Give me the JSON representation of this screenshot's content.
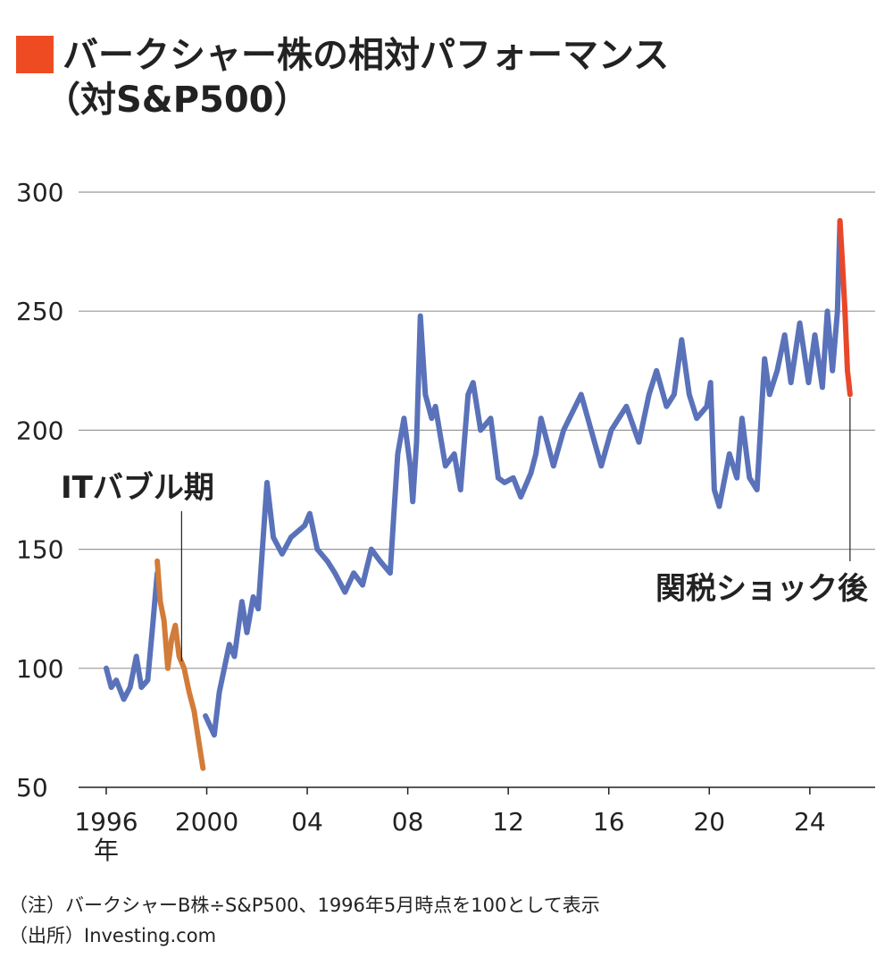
{
  "chart_data": {
    "type": "line",
    "title": "バークシャー株の相対パフォーマンス",
    "subtitle": "（対S&P500）",
    "title_marker_color": "#ef4b23",
    "x_unit": "年",
    "xlim": [
      1994.9,
      2026.6
    ],
    "xticks": [
      1996,
      2000,
      {
        "value": 2004,
        "label": "04"
      },
      {
        "value": 2008,
        "label": "08"
      },
      {
        "value": 2012,
        "label": "12"
      },
      {
        "value": 2016,
        "label": "16"
      },
      {
        "value": 2020,
        "label": "20"
      },
      {
        "value": 2024,
        "label": "24"
      }
    ],
    "ylim": [
      50,
      300
    ],
    "yticks": [
      50,
      100,
      150,
      200,
      250,
      300
    ],
    "grid": true,
    "series": [
      {
        "color": "#5a72b9",
        "x": [
          1996.0,
          1996.2,
          1996.4,
          1996.7,
          1996.95,
          1997.2,
          1997.4,
          1997.65,
          1997.85,
          1998.03
        ],
        "values": [
          100,
          92,
          95,
          87,
          92,
          105,
          92,
          95,
          118,
          140
        ]
      },
      {
        "color": "#d27c3a",
        "x": [
          1998.03,
          1998.15,
          1998.3,
          1998.45,
          1998.6,
          1998.75,
          1998.9,
          1999.1,
          1999.3,
          1999.5,
          1999.7,
          1999.85
        ],
        "values": [
          145,
          128,
          120,
          100,
          112,
          118,
          105,
          100,
          90,
          82,
          68,
          58
        ]
      },
      {
        "color": "#5a72b9",
        "x": [
          1999.95,
          2000.3,
          2000.5,
          2000.9,
          2001.1,
          2001.4,
          2001.6,
          2001.85,
          2002.05,
          2002.4,
          2002.65,
          2003.0,
          2003.35,
          2003.9,
          2004.1,
          2004.4,
          2004.8,
          2005.1,
          2005.5,
          2005.85,
          2006.2,
          2006.55,
          2006.9,
          2007.3,
          2007.45,
          2007.6,
          2007.85,
          2008.1,
          2008.2,
          2008.35,
          2008.5,
          2008.7,
          2008.95,
          2009.1,
          2009.5,
          2009.85,
          2010.1,
          2010.4,
          2010.6,
          2010.9,
          2011.3,
          2011.6,
          2011.85,
          2012.2,
          2012.5,
          2012.9,
          2013.1,
          2013.3,
          2013.8,
          2014.2,
          2014.9,
          2015.3,
          2015.7,
          2016.1,
          2016.7,
          2017.2,
          2017.6,
          2017.9,
          2018.3,
          2018.6,
          2018.9,
          2019.2,
          2019.5,
          2019.9,
          2020.05,
          2020.2,
          2020.4,
          2020.8,
          2021.1,
          2021.3,
          2021.6,
          2021.9,
          2022.2,
          2022.4,
          2022.7,
          2023.0,
          2023.25,
          2023.6,
          2023.95,
          2024.2,
          2024.5,
          2024.7,
          2024.9,
          2025.1,
          2025.2
        ],
        "values": [
          80,
          72,
          90,
          110,
          105,
          128,
          115,
          130,
          125,
          178,
          155,
          148,
          155,
          160,
          165,
          150,
          145,
          140,
          132,
          140,
          135,
          150,
          145,
          140,
          165,
          190,
          205,
          185,
          170,
          195,
          248,
          215,
          205,
          210,
          185,
          190,
          175,
          215,
          220,
          200,
          205,
          180,
          178,
          180,
          172,
          182,
          190,
          205,
          185,
          200,
          215,
          200,
          185,
          200,
          210,
          195,
          215,
          225,
          210,
          215,
          238,
          215,
          205,
          210,
          220,
          175,
          168,
          190,
          180,
          205,
          180,
          175,
          230,
          215,
          225,
          240,
          220,
          245,
          220,
          240,
          218,
          250,
          225,
          250,
          288
        ]
      },
      {
        "color": "#e8472a",
        "x": [
          2025.2,
          2025.3,
          2025.4,
          2025.5,
          2025.55,
          2025.6
        ],
        "values": [
          288,
          270,
          250,
          225,
          220,
          215
        ]
      }
    ],
    "annotations": [
      {
        "text": "ITバブル期",
        "color": "#d27c3a",
        "x": 1999.0
      },
      {
        "text": "関税ショック後",
        "color": "#e8472a",
        "x": 2025.6
      }
    ],
    "notes": [
      "（注）バークシャーB株÷S&P500、1996年5月時点を100として表示",
      "（出所）Investing.com"
    ]
  }
}
